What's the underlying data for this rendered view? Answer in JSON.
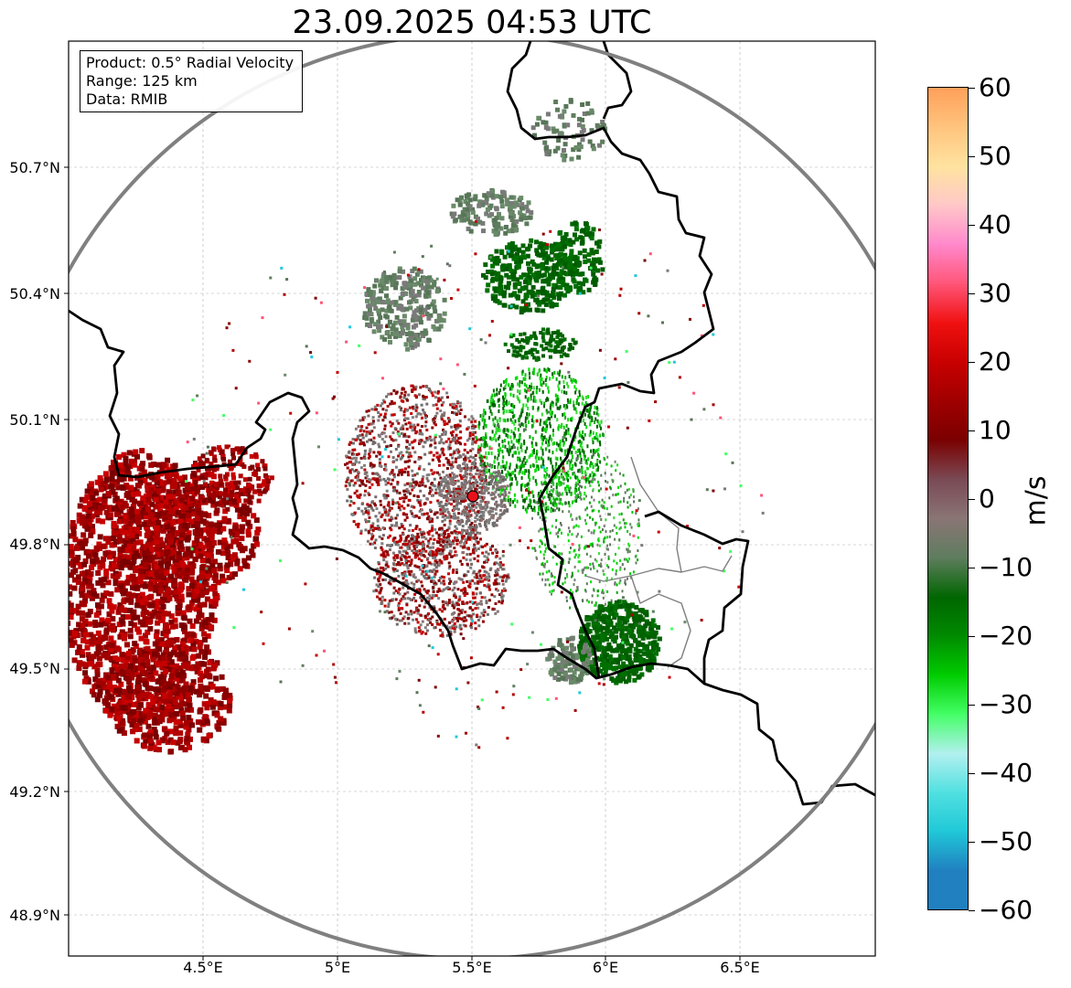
{
  "title": "23.09.2025 04:53 UTC",
  "info": {
    "product": "Product: 0.5° Radial Velocity",
    "range": "Range: 125 km",
    "source": "Data: RMIB"
  },
  "axes": {
    "lat_ticks": [
      "50.7°N",
      "50.4°N",
      "50.1°N",
      "49.8°N",
      "49.5°N",
      "49.2°N",
      "48.9°N"
    ],
    "lon_ticks": [
      "4.5°E",
      "5°E",
      "5.5°E",
      "6°E",
      "6.5°E"
    ]
  },
  "map": {
    "radar_site_color": "#e8101a",
    "range_ring_color": "#808080",
    "border_color": "#000000",
    "admin_border_color": "#7f7f7f",
    "grid_color": "#b0b0b0"
  },
  "colorbar": {
    "unit": "m/s",
    "tick_labels": [
      "60",
      "50",
      "40",
      "30",
      "20",
      "10",
      "0",
      "−10",
      "−20",
      "−30",
      "−40",
      "−50",
      "−60"
    ],
    "stops": [
      "#ffa05a",
      "#ffc47e",
      "#ffe3a0",
      "#ffc8c8",
      "#ff88cc",
      "#ff5577",
      "#f01010",
      "#c80000",
      "#a00000",
      "#7a0000",
      "#7a4a55",
      "#8a7575",
      "#5e7d5e",
      "#006600",
      "#008a00",
      "#00cc00",
      "#44ff66",
      "#b3f0f0",
      "#50e0e0",
      "#20c8d8",
      "#2080c0"
    ]
  }
}
